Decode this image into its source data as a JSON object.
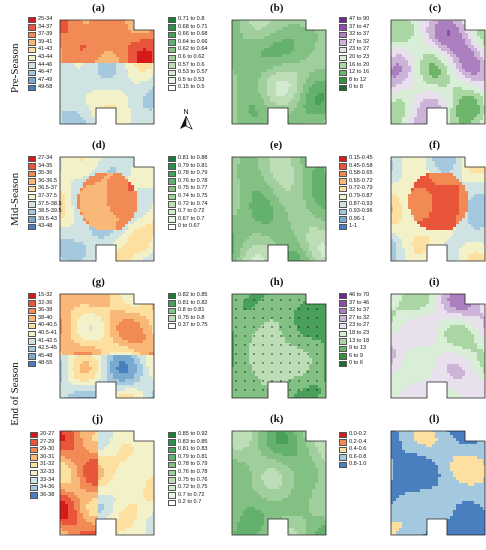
{
  "rows": [
    "Pre-Season",
    "Mid-Season",
    "End of Season"
  ],
  "panels": [
    "(a)",
    "(b)",
    "(c)",
    "(d)",
    "(e)",
    "(f)",
    "(g)",
    "(h)",
    "(i)",
    "(j)",
    "(k)",
    "(l)"
  ],
  "north_label": "N",
  "legends": {
    "a": {
      "items": [
        {
          "label": "25-34",
          "color": "#d7191c"
        },
        {
          "label": "34-37",
          "color": "#e8553a"
        },
        {
          "label": "37-39",
          "color": "#f28a55"
        },
        {
          "label": "39-41",
          "color": "#f9b878"
        },
        {
          "label": "41-43",
          "color": "#fde0a0"
        },
        {
          "label": "43-44",
          "color": "#f3f1c8"
        },
        {
          "label": "44-46",
          "color": "#cfe3e3"
        },
        {
          "label": "46-47",
          "color": "#a4c8dd"
        },
        {
          "label": "47-49",
          "color": "#78a9cf"
        },
        {
          "label": "49-58",
          "color": "#4a7fbf"
        }
      ]
    },
    "b": {
      "items": [
        {
          "label": "0.71 to 0.8",
          "color": "#1b7d3a"
        },
        {
          "label": "0.68 to 0.71",
          "color": "#2f8f48"
        },
        {
          "label": "0.66 to 0.68",
          "color": "#48a05a"
        },
        {
          "label": "0.64 to 0.66",
          "color": "#64b06d"
        },
        {
          "label": "0.62 to 0.64",
          "color": "#82c084"
        },
        {
          "label": "0.6 to 0.62",
          "color": "#a0cf9d"
        },
        {
          "label": "0.57 to 0.6",
          "color": "#bcddb6"
        },
        {
          "label": "0.53 to 0.57",
          "color": "#d4ead0"
        },
        {
          "label": "0.5 to 0.53",
          "color": "#e8f4e6"
        },
        {
          "label": "0.15 to 0.5",
          "color": "#ffffff"
        }
      ]
    },
    "c": {
      "items": [
        {
          "label": "47 to 90",
          "color": "#6a2c8f"
        },
        {
          "label": "37 to 47",
          "color": "#8c50a9"
        },
        {
          "label": "32 to 37",
          "color": "#ab7ec0"
        },
        {
          "label": "27 to 32",
          "color": "#cdb3d7"
        },
        {
          "label": "23 to 27",
          "color": "#e9e0ee"
        },
        {
          "label": "20 to 23",
          "color": "#d9eed6"
        },
        {
          "label": "16 to 20",
          "color": "#a9d6a3"
        },
        {
          "label": "12 to 16",
          "color": "#6fb56c"
        },
        {
          "label": "8 to 12",
          "color": "#35903f"
        },
        {
          "label": "0 to 8",
          "color": "#1b6b2e"
        }
      ]
    },
    "d": {
      "items": [
        {
          "label": "27-34",
          "color": "#d7191c"
        },
        {
          "label": "34-35",
          "color": "#e8553a"
        },
        {
          "label": "35-36",
          "color": "#f28a55"
        },
        {
          "label": "36-36.5",
          "color": "#f9b878"
        },
        {
          "label": "36.5-37",
          "color": "#fde0a0"
        },
        {
          "label": "37-37.5",
          "color": "#f3f1c8"
        },
        {
          "label": "37.5-38.5",
          "color": "#cfe3e3"
        },
        {
          "label": "38.5-39.5",
          "color": "#a4c8dd"
        },
        {
          "label": "39.5-43",
          "color": "#78a9cf"
        },
        {
          "label": "43-48",
          "color": "#4a7fbf"
        }
      ]
    },
    "e": {
      "items": [
        {
          "label": "0.81 to 0.88",
          "color": "#1b7d3a"
        },
        {
          "label": "0.79 to 0.81",
          "color": "#2f8f48"
        },
        {
          "label": "0.78 to 0.79",
          "color": "#48a05a"
        },
        {
          "label": "0.76 to 0.78",
          "color": "#64b06d"
        },
        {
          "label": "0.75 to 0.77",
          "color": "#82c084"
        },
        {
          "label": "0.74 to 0.75",
          "color": "#a0cf9d"
        },
        {
          "label": "0.72 to 0.74",
          "color": "#bcddb6"
        },
        {
          "label": "0.7 to 0.72",
          "color": "#d4ead0"
        },
        {
          "label": "0.67 to 0.7",
          "color": "#e8f4e6"
        },
        {
          "label": "0 to 0.67",
          "color": "#ffffff"
        }
      ]
    },
    "f": {
      "items": [
        {
          "label": "0.15-0.45",
          "color": "#d7191c"
        },
        {
          "label": "0.45-0.58",
          "color": "#e8553a"
        },
        {
          "label": "0.58-0.65",
          "color": "#f28a55"
        },
        {
          "label": "0.65-0.72",
          "color": "#f9b878"
        },
        {
          "label": "0.72-0.79",
          "color": "#fde0a0"
        },
        {
          "label": "0.79-0.87",
          "color": "#f3f1c8"
        },
        {
          "label": "0.87-0.93",
          "color": "#cfe3e3"
        },
        {
          "label": "0.93-0.96",
          "color": "#a4c8dd"
        },
        {
          "label": "0.96-1",
          "color": "#78a9cf"
        },
        {
          "label": "1-1",
          "color": "#4a7fbf"
        }
      ]
    },
    "g": {
      "items": [
        {
          "label": "15-32",
          "color": "#d7191c"
        },
        {
          "label": "32-36",
          "color": "#e8553a"
        },
        {
          "label": "36-38",
          "color": "#f28a55"
        },
        {
          "label": "38-40",
          "color": "#f9b878"
        },
        {
          "label": "40-40.5",
          "color": "#fde0a0"
        },
        {
          "label": "40.5-41",
          "color": "#f3f1c8"
        },
        {
          "label": "41-42.5",
          "color": "#cfe3e3"
        },
        {
          "label": "42.5-45",
          "color": "#a4c8dd"
        },
        {
          "label": "45-48",
          "color": "#78a9cf"
        },
        {
          "label": "48-55",
          "color": "#4a7fbf"
        }
      ]
    },
    "h": {
      "items": [
        {
          "label": "0.82 to 0.85",
          "color": "#1b7d3a"
        },
        {
          "label": "0.81 to 0.82",
          "color": "#48a05a"
        },
        {
          "label": "0.8 to 0.81",
          "color": "#82c084"
        },
        {
          "label": "0.75 to 0.8",
          "color": "#bcddb6"
        },
        {
          "label": "0.37 to 0.75",
          "color": "#ffffff"
        }
      ]
    },
    "i": {
      "items": [
        {
          "label": "46 to 70",
          "color": "#6a2c8f"
        },
        {
          "label": "37 to 46",
          "color": "#8c50a9"
        },
        {
          "label": "32 to 37",
          "color": "#ab7ec0"
        },
        {
          "label": "27 to 32",
          "color": "#cdb3d7"
        },
        {
          "label": "23 to 27",
          "color": "#e9e0ee"
        },
        {
          "label": "18 to 23",
          "color": "#d9eed6"
        },
        {
          "label": "13 to 18",
          "color": "#a9d6a3"
        },
        {
          "label": "9 to 13",
          "color": "#6fb56c"
        },
        {
          "label": "6 to 9",
          "color": "#35903f"
        },
        {
          "label": "0 to 6",
          "color": "#1b6b2e"
        }
      ]
    },
    "j": {
      "items": [
        {
          "label": "20-27",
          "color": "#d7191c"
        },
        {
          "label": "27-29",
          "color": "#e8553a"
        },
        {
          "label": "29-30",
          "color": "#f28a55"
        },
        {
          "label": "30-31",
          "color": "#f9b878"
        },
        {
          "label": "31-32",
          "color": "#fde0a0"
        },
        {
          "label": "32-33",
          "color": "#f3f1c8"
        },
        {
          "label": "33-34",
          "color": "#cfe3e3"
        },
        {
          "label": "34-36",
          "color": "#a4c8dd"
        },
        {
          "label": "36-38",
          "color": "#4a7fbf"
        }
      ]
    },
    "k": {
      "items": [
        {
          "label": "0.85 to 0.92",
          "color": "#1b7d3a"
        },
        {
          "label": "0.83 to 0.85",
          "color": "#2f8f48"
        },
        {
          "label": "0.81 to 0.83",
          "color": "#48a05a"
        },
        {
          "label": "0.79 to 0.81",
          "color": "#64b06d"
        },
        {
          "label": "0.78 to 0.79",
          "color": "#82c084"
        },
        {
          "label": "0.76 to 0.78",
          "color": "#a0cf9d"
        },
        {
          "label": "0.75 to 0.76",
          "color": "#bcddb6"
        },
        {
          "label": "0.72 to 0.75",
          "color": "#d4ead0"
        },
        {
          "label": "0.7 to 0.72",
          "color": "#e8f4e6"
        },
        {
          "label": "0.2 to 0.7",
          "color": "#ffffff"
        }
      ]
    },
    "l": {
      "items": [
        {
          "label": "0.0-0.2",
          "color": "#d7191c"
        },
        {
          "label": "0.2-0.4",
          "color": "#f28a55"
        },
        {
          "label": "0.4-0.6",
          "color": "#fde0a0"
        },
        {
          "label": "0.6-0.8",
          "color": "#a4c8dd"
        },
        {
          "label": "0.8-1.0",
          "color": "#4a7fbf"
        }
      ]
    }
  }
}
